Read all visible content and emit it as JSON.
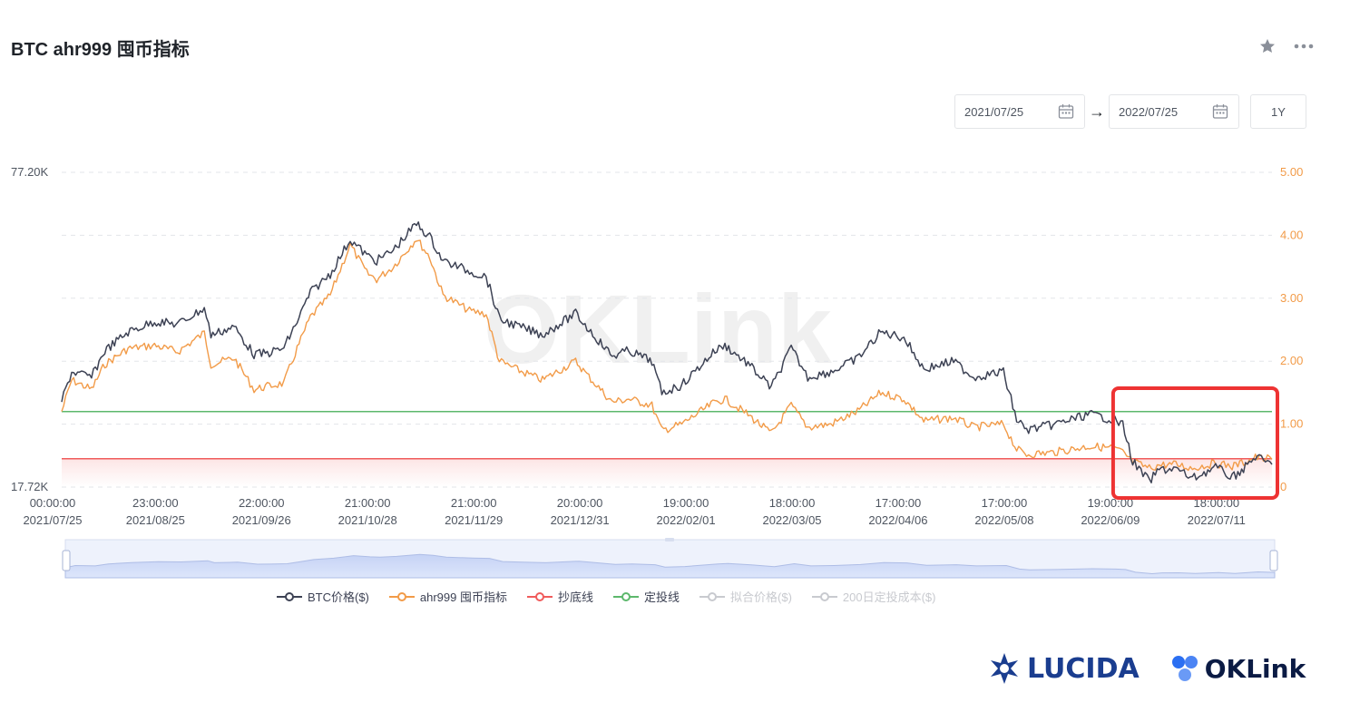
{
  "header": {
    "title": "BTC ahr999 囤币指标",
    "star_icon": "star-icon",
    "more_icon": "more-icon"
  },
  "date_range": {
    "start": "2021/07/25",
    "end": "2022/07/25",
    "arrow": "→",
    "range_button": "1Y"
  },
  "watermark": "OKLink",
  "logos": {
    "lucida": "LUCIDA",
    "oklink": "OKLink"
  },
  "colors": {
    "price": "#3d4254",
    "ahr999": "#f29b48",
    "bottom_line": "#f05b5b",
    "dca_line": "#5cb86c",
    "inactive": "#c8cacf",
    "highlight_box": "#ee3333"
  },
  "chart_data": {
    "type": "line",
    "y_left_ticks": [
      "77.20K",
      "17.72K"
    ],
    "y_left_range": [
      17720,
      77200
    ],
    "y_right_ticks": [
      "5.00",
      "4.00",
      "3.00",
      "2.00",
      "1.00",
      "0"
    ],
    "y_right_range": [
      0,
      5
    ],
    "x_tick_times": [
      "00:00:00",
      "23:00:00",
      "22:00:00",
      "21:00:00",
      "21:00:00",
      "20:00:00",
      "19:00:00",
      "18:00:00",
      "17:00:00",
      "17:00:00",
      "19:00:00",
      "18:00:00"
    ],
    "x_tick_dates": [
      "2021/07/25",
      "2021/08/25",
      "2021/09/26",
      "2021/10/28",
      "2021/11/29",
      "2021/12/31",
      "2022/02/01",
      "2022/03/05",
      "2022/04/06",
      "2022/05/08",
      "2022/06/09",
      "2022/07/11"
    ],
    "x_start": "2021/07/25",
    "x_end": "2022/07/25",
    "series": [
      {
        "name": "BTC价格($)",
        "axis": "left",
        "points": [
          [
            "2021-07-25",
            34000
          ],
          [
            "2021-07-28",
            39500
          ],
          [
            "2021-08-03",
            38500
          ],
          [
            "2021-08-07",
            43500
          ],
          [
            "2021-08-14",
            47000
          ],
          [
            "2021-08-22",
            49000
          ],
          [
            "2021-08-29",
            48500
          ],
          [
            "2021-09-06",
            51500
          ],
          [
            "2021-09-08",
            46500
          ],
          [
            "2021-09-15",
            48000
          ],
          [
            "2021-09-21",
            42800
          ],
          [
            "2021-09-25",
            43000
          ],
          [
            "2021-09-30",
            44000
          ],
          [
            "2021-10-04",
            49000
          ],
          [
            "2021-10-08",
            54500
          ],
          [
            "2021-10-14",
            58000
          ],
          [
            "2021-10-20",
            64500
          ],
          [
            "2021-10-25",
            61500
          ],
          [
            "2021-10-28",
            60500
          ],
          [
            "2021-11-02",
            62500
          ],
          [
            "2021-11-09",
            67500
          ],
          [
            "2021-11-13",
            65000
          ],
          [
            "2021-11-17",
            60500
          ],
          [
            "2021-11-25",
            58500
          ],
          [
            "2021-11-30",
            57500
          ],
          [
            "2021-12-04",
            49500
          ],
          [
            "2021-12-10",
            48000
          ],
          [
            "2021-12-17",
            46500
          ],
          [
            "2021-12-27",
            50500
          ],
          [
            "2021-12-31",
            47500
          ],
          [
            "2022-01-07",
            42500
          ],
          [
            "2022-01-12",
            43500
          ],
          [
            "2022-01-19",
            41500
          ],
          [
            "2022-01-22",
            35500
          ],
          [
            "2022-01-28",
            37000
          ],
          [
            "2022-02-07",
            43500
          ],
          [
            "2022-02-10",
            44500
          ],
          [
            "2022-02-17",
            41000
          ],
          [
            "2022-02-24",
            36500
          ],
          [
            "2022-03-02",
            44000
          ],
          [
            "2022-03-07",
            38500
          ],
          [
            "2022-03-14",
            39500
          ],
          [
            "2022-03-22",
            42000
          ],
          [
            "2022-03-29",
            47000
          ],
          [
            "2022-04-05",
            46000
          ],
          [
            "2022-04-11",
            40000
          ],
          [
            "2022-04-20",
            41500
          ],
          [
            "2022-04-26",
            38500
          ],
          [
            "2022-05-05",
            39500
          ],
          [
            "2022-05-09",
            30500
          ],
          [
            "2022-05-12",
            28500
          ],
          [
            "2022-05-20",
            29500
          ],
          [
            "2022-05-31",
            31500
          ],
          [
            "2022-06-07",
            30500
          ],
          [
            "2022-06-10",
            29500
          ],
          [
            "2022-06-13",
            22500
          ],
          [
            "2022-06-18",
            18800
          ],
          [
            "2022-06-21",
            21000
          ],
          [
            "2022-06-26",
            21200
          ],
          [
            "2022-07-01",
            19300
          ],
          [
            "2022-07-08",
            21500
          ],
          [
            "2022-07-13",
            19500
          ],
          [
            "2022-07-17",
            21500
          ],
          [
            "2022-07-20",
            23500
          ],
          [
            "2022-07-23",
            22500
          ],
          [
            "2022-07-25",
            22000
          ]
        ]
      },
      {
        "name": "ahr999 囤币指标",
        "axis": "right",
        "points": [
          [
            "2021-07-25",
            1.2
          ],
          [
            "2021-07-28",
            1.7
          ],
          [
            "2021-08-03",
            1.55
          ],
          [
            "2021-08-07",
            1.95
          ],
          [
            "2021-08-14",
            2.2
          ],
          [
            "2021-08-22",
            2.25
          ],
          [
            "2021-08-29",
            2.15
          ],
          [
            "2021-09-06",
            2.45
          ],
          [
            "2021-09-08",
            1.95
          ],
          [
            "2021-09-15",
            2.05
          ],
          [
            "2021-09-21",
            1.55
          ],
          [
            "2021-09-25",
            1.6
          ],
          [
            "2021-09-30",
            1.65
          ],
          [
            "2021-10-04",
            2.2
          ],
          [
            "2021-10-08",
            2.7
          ],
          [
            "2021-10-14",
            3.05
          ],
          [
            "2021-10-20",
            3.85
          ],
          [
            "2021-10-25",
            3.4
          ],
          [
            "2021-10-28",
            3.3
          ],
          [
            "2021-11-02",
            3.5
          ],
          [
            "2021-11-09",
            3.95
          ],
          [
            "2021-11-13",
            3.65
          ],
          [
            "2021-11-17",
            3.05
          ],
          [
            "2021-11-25",
            2.8
          ],
          [
            "2021-11-30",
            2.75
          ],
          [
            "2021-12-04",
            2.0
          ],
          [
            "2021-12-10",
            1.85
          ],
          [
            "2021-12-17",
            1.7
          ],
          [
            "2021-12-27",
            2.0
          ],
          [
            "2021-12-31",
            1.75
          ],
          [
            "2022-01-07",
            1.35
          ],
          [
            "2022-01-12",
            1.4
          ],
          [
            "2022-01-19",
            1.3
          ],
          [
            "2022-01-22",
            0.9
          ],
          [
            "2022-01-28",
            1.0
          ],
          [
            "2022-02-07",
            1.35
          ],
          [
            "2022-02-10",
            1.4
          ],
          [
            "2022-02-17",
            1.15
          ],
          [
            "2022-02-24",
            0.85
          ],
          [
            "2022-03-02",
            1.3
          ],
          [
            "2022-03-07",
            0.95
          ],
          [
            "2022-03-14",
            1.0
          ],
          [
            "2022-03-22",
            1.2
          ],
          [
            "2022-03-29",
            1.5
          ],
          [
            "2022-04-05",
            1.4
          ],
          [
            "2022-04-11",
            1.05
          ],
          [
            "2022-04-20",
            1.1
          ],
          [
            "2022-04-26",
            0.95
          ],
          [
            "2022-05-05",
            1.0
          ],
          [
            "2022-05-09",
            0.6
          ],
          [
            "2022-05-12",
            0.52
          ],
          [
            "2022-05-20",
            0.55
          ],
          [
            "2022-05-31",
            0.65
          ],
          [
            "2022-06-07",
            0.62
          ],
          [
            "2022-06-10",
            0.55
          ],
          [
            "2022-06-13",
            0.4
          ],
          [
            "2022-06-18",
            0.3
          ],
          [
            "2022-06-21",
            0.35
          ],
          [
            "2022-06-26",
            0.36
          ],
          [
            "2022-07-01",
            0.3
          ],
          [
            "2022-07-08",
            0.38
          ],
          [
            "2022-07-13",
            0.33
          ],
          [
            "2022-07-17",
            0.4
          ],
          [
            "2022-07-20",
            0.47
          ],
          [
            "2022-07-23",
            0.45
          ],
          [
            "2022-07-25",
            0.44
          ]
        ]
      },
      {
        "name": "抄底线",
        "axis": "right",
        "value": 0.45
      },
      {
        "name": "定投线",
        "axis": "right",
        "value": 1.2
      },
      {
        "name": "拟合价格($)",
        "axis": "left",
        "hidden": true
      },
      {
        "name": "200日定投成本($)",
        "axis": "left",
        "hidden": true
      }
    ],
    "legend": [
      "BTC价格($)",
      "ahr999 囤币指标",
      "抄底线",
      "定投线",
      "拟合价格($)",
      "200日定投成本($)"
    ],
    "legend_placement": "bottom",
    "highlight": {
      "x_start": "2022-06-06",
      "x_end": "2022-07-25",
      "y_start": 0.0,
      "y_end": 1.6,
      "axis": "right"
    },
    "grid": true
  }
}
